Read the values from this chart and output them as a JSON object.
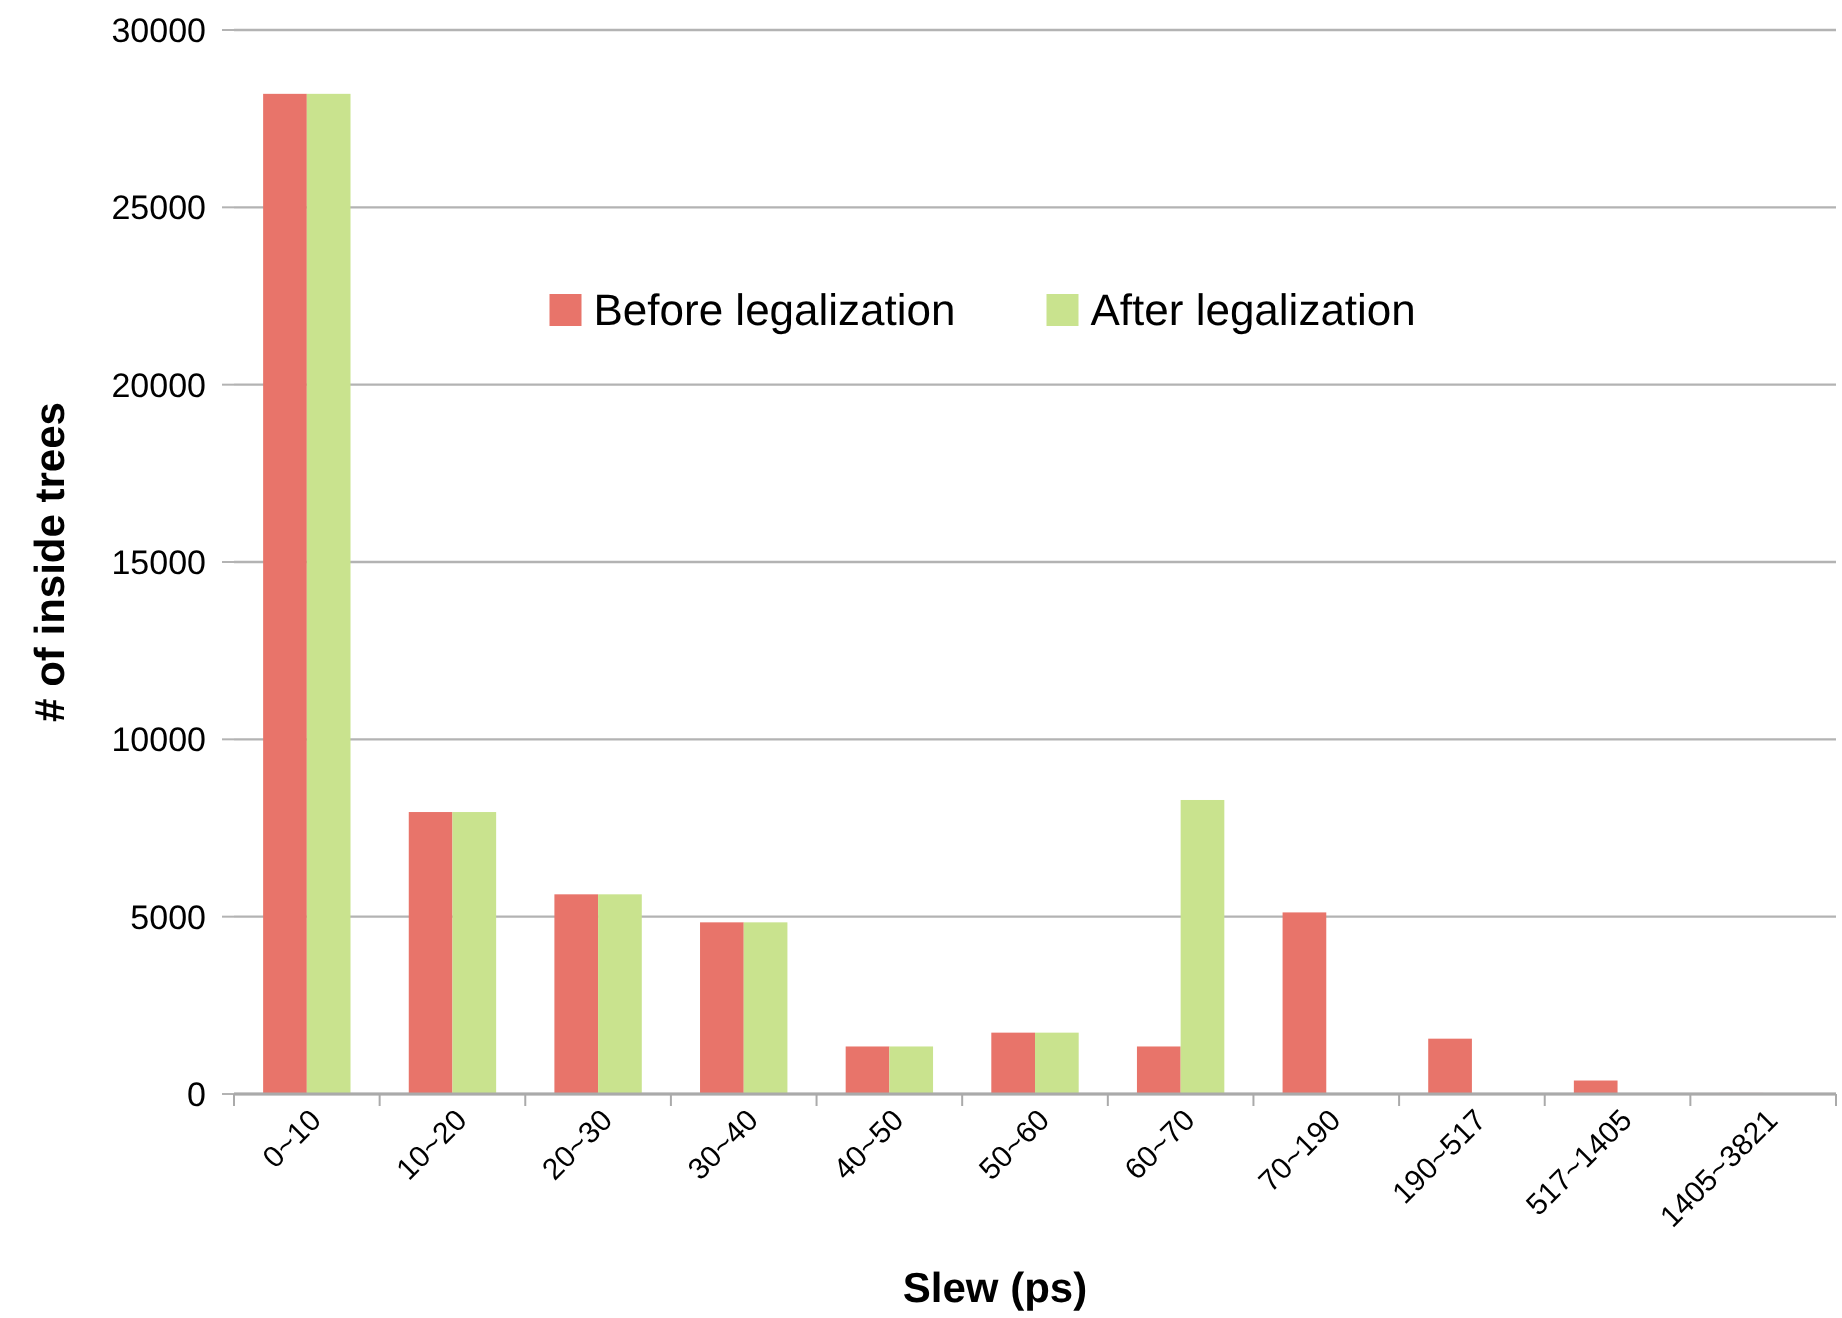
{
  "chart_data": {
    "type": "bar",
    "xlabel": "Slew (ps)",
    "ylabel": "# of inside trees",
    "categories": [
      "0~10",
      "10~20",
      "20~30",
      "30~40",
      "40~50",
      "50~60",
      "60~70",
      "70~190",
      "190~517",
      "517~1405",
      "1405~3821"
    ],
    "series": [
      {
        "name": "Before legalization",
        "color": "#e8746a",
        "values": [
          28200,
          7950,
          5630,
          4840,
          1340,
          1730,
          1340,
          5120,
          1560,
          380,
          30
        ]
      },
      {
        "name": "After legalization",
        "color": "#c9e38e",
        "values": [
          28200,
          7950,
          5630,
          4840,
          1340,
          1730,
          8290,
          0,
          0,
          0,
          0
        ]
      }
    ],
    "ylim": [
      0,
      30000
    ],
    "yticks": [
      0,
      5000,
      10000,
      15000,
      20000,
      25000,
      30000
    ],
    "grid": "y",
    "legend": "top"
  }
}
